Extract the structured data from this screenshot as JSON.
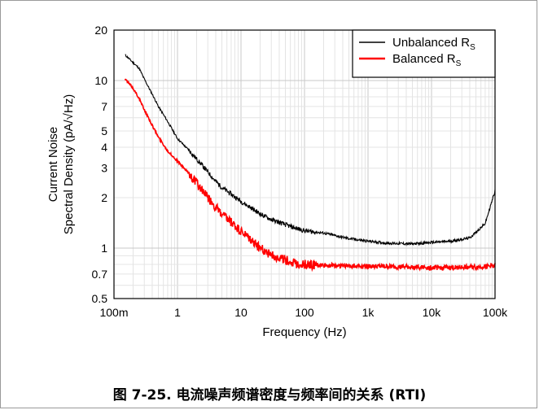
{
  "chart_data": {
    "type": "line",
    "xlabel": "Frequency (Hz)",
    "ylabel_line1": "Current Noise",
    "ylabel_line2": "Spectral Density (pA/√Hz)",
    "x_scale": "log",
    "y_scale": "log",
    "xlim": [
      0.1,
      100000
    ],
    "ylim": [
      0.5,
      20
    ],
    "x_ticks": [
      {
        "value": 0.1,
        "label": "100m"
      },
      {
        "value": 1,
        "label": "1"
      },
      {
        "value": 10,
        "label": "10"
      },
      {
        "value": 100,
        "label": "100"
      },
      {
        "value": 1000,
        "label": "1k"
      },
      {
        "value": 10000,
        "label": "10k"
      },
      {
        "value": 100000,
        "label": "100k"
      }
    ],
    "y_ticks": [
      {
        "value": 0.5,
        "label": "0.5"
      },
      {
        "value": 0.7,
        "label": "0.7"
      },
      {
        "value": 1,
        "label": "1"
      },
      {
        "value": 2,
        "label": "2"
      },
      {
        "value": 3,
        "label": "3"
      },
      {
        "value": 4,
        "label": "4"
      },
      {
        "value": 5,
        "label": "5"
      },
      {
        "value": 7,
        "label": "7"
      },
      {
        "value": 10,
        "label": "10"
      },
      {
        "value": 20,
        "label": "20"
      }
    ],
    "grid": true,
    "legend_position": "top-right",
    "series": [
      {
        "name": "Unbalanced R",
        "subscript": "S",
        "color": "#000000",
        "x": [
          0.15,
          0.2,
          0.25,
          0.3,
          0.4,
          0.5,
          0.7,
          1,
          1.5,
          2,
          3,
          4,
          5,
          7,
          10,
          15,
          20,
          30,
          50,
          70,
          100,
          200,
          500,
          1000,
          2000,
          5000,
          10000,
          20000,
          40000,
          70000,
          100000
        ],
        "y": [
          14.2,
          12.8,
          11.8,
          10.2,
          8.3,
          7.0,
          5.7,
          4.5,
          3.85,
          3.4,
          2.85,
          2.5,
          2.3,
          2.1,
          1.9,
          1.72,
          1.6,
          1.48,
          1.38,
          1.32,
          1.27,
          1.23,
          1.14,
          1.1,
          1.07,
          1.06,
          1.08,
          1.1,
          1.15,
          1.4,
          2.2
        ]
      },
      {
        "name": "Balanced R",
        "subscript": "S",
        "color": "#ff0000",
        "x": [
          0.15,
          0.2,
          0.25,
          0.3,
          0.4,
          0.5,
          0.7,
          1,
          1.5,
          2,
          3,
          4,
          5,
          7,
          10,
          15,
          20,
          30,
          50,
          70,
          100,
          200,
          500,
          1000,
          2000,
          5000,
          10000,
          20000,
          40000,
          70000,
          100000
        ],
        "y": [
          10.2,
          9.0,
          7.8,
          6.7,
          5.4,
          4.6,
          3.8,
          3.3,
          2.8,
          2.45,
          2.0,
          1.75,
          1.58,
          1.42,
          1.25,
          1.1,
          1.0,
          0.91,
          0.85,
          0.81,
          0.8,
          0.79,
          0.785,
          0.78,
          0.775,
          0.77,
          0.765,
          0.765,
          0.77,
          0.775,
          0.79
        ]
      }
    ]
  },
  "caption": "图 7-25. 电流噪声频谱密度与频率间的关系 (RTI)"
}
